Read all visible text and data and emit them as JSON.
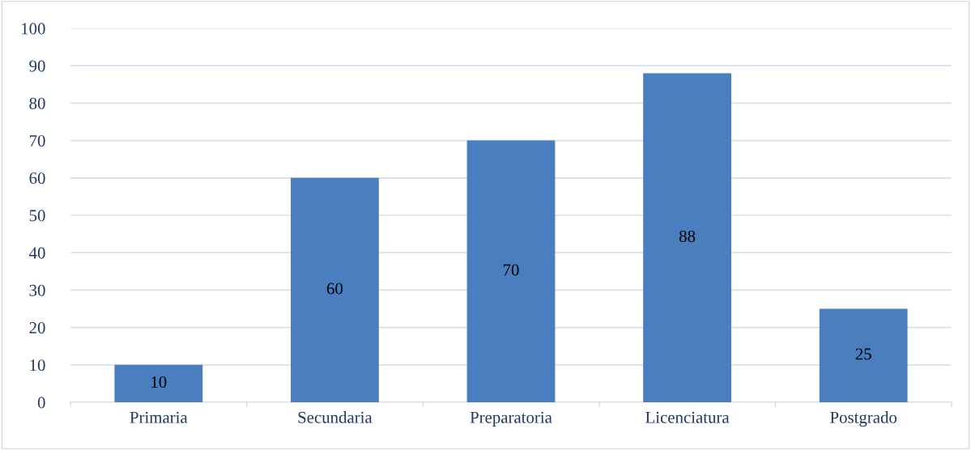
{
  "chart_data": {
    "type": "bar",
    "categories": [
      "Primaria",
      "Secundaria",
      "Preparatoria",
      "Licenciatura",
      "Postgrado"
    ],
    "values": [
      10,
      60,
      70,
      88,
      25
    ],
    "color": "#4a7ebf",
    "ylim": [
      0,
      100
    ],
    "yticks": [
      0,
      10,
      20,
      30,
      40,
      50,
      60,
      70,
      80,
      90,
      100
    ],
    "grid": "y",
    "data_labels": true,
    "legend": false
  }
}
